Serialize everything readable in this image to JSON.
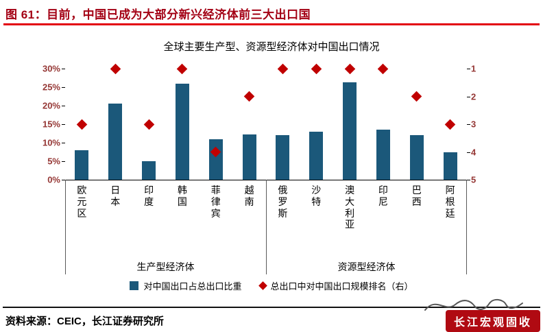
{
  "figure": {
    "title": "图 61：目前，中国已成为大部分新兴经济体前三大出口国"
  },
  "chart_data": {
    "type": "bar",
    "title": "全球主要生产型、资源型经济体对中国出口情况",
    "categories": [
      "欧元区",
      "日本",
      "印度",
      "韩国",
      "菲律宾",
      "越南",
      "俄罗斯",
      "沙特",
      "澳大利亚",
      "印尼",
      "巴西",
      "阿根廷"
    ],
    "groups": [
      {
        "label": "生产型经济体",
        "start": 0,
        "count": 6
      },
      {
        "label": "资源型经济体",
        "start": 6,
        "count": 6
      }
    ],
    "series": [
      {
        "name": "对中国出口占总出口比重",
        "type": "bar",
        "axis": "left",
        "unit": "%",
        "values": [
          8,
          20.5,
          5,
          26,
          11,
          12.3,
          12,
          13,
          26.3,
          13.5,
          12,
          7.5
        ]
      },
      {
        "name": "总出口中对中国出口规模排名（右）",
        "type": "scatter",
        "marker": "diamond",
        "axis": "right",
        "values": [
          3,
          1,
          3,
          1,
          4,
          2,
          1,
          1,
          1,
          1,
          2,
          3
        ]
      }
    ],
    "left_axis": {
      "min": 0,
      "max": 30,
      "ticks": [
        "30%",
        "25%",
        "20%",
        "15%",
        "10%",
        "5%",
        "0%"
      ]
    },
    "right_axis": {
      "min": 1,
      "max": 5,
      "inverted": true,
      "ticks": [
        "1",
        "2",
        "3",
        "4",
        "5"
      ]
    },
    "legend": [
      "对中国出口占总出口比重",
      "总出口中对中国出口规模排名（右）"
    ],
    "legend_position": "bottom",
    "grid": false,
    "colors": {
      "bar": "#1b587a",
      "diamond": "#c00000",
      "axis_label": "#953735"
    }
  },
  "theme": {
    "title_red": "#a30014",
    "rule_red": "#e3000e",
    "stamp_red": "#b00a12"
  },
  "footer": {
    "source": "资料来源：CEIC，长江证券研究所",
    "stamp": "长江宏观固收"
  }
}
